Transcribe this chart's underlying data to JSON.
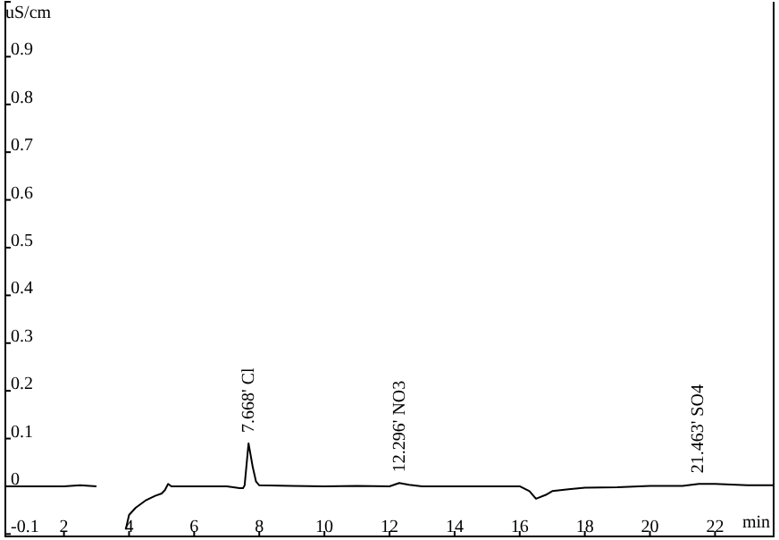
{
  "chart_data": {
    "type": "line",
    "ylabel": "uS/cm",
    "xlabel": "min",
    "x": [
      0.2,
      1,
      2,
      2.5,
      3,
      3.02,
      3.85,
      3.9,
      4,
      4.2,
      4.5,
      4.8,
      5,
      5.1,
      5.2,
      5.3,
      5.5,
      6,
      7,
      7.4,
      7.5,
      7.55,
      7.67,
      7.8,
      7.9,
      8,
      9,
      10,
      11,
      12,
      12.3,
      12.6,
      13,
      14,
      15,
      16,
      16.3,
      16.5,
      16.8,
      17,
      17.5,
      18,
      19,
      20,
      21,
      21.5,
      22,
      23,
      23.8
    ],
    "series": [
      {
        "color": "#000000",
        "values": [
          0,
          0,
          0,
          0.002,
          0,
          null,
          null,
          -0.09,
          -0.06,
          -0.045,
          -0.03,
          -0.02,
          -0.015,
          -0.008,
          0.005,
          0,
          0,
          0,
          0,
          -0.004,
          -0.004,
          0.002,
          0.09,
          0.04,
          0.01,
          0.002,
          0.001,
          0,
          0.001,
          0,
          0.007,
          0.003,
          0,
          0,
          0,
          0,
          -0.01,
          -0.026,
          -0.018,
          -0.01,
          -0.006,
          -0.003,
          -0.002,
          0.001,
          0.001,
          0.005,
          0.005,
          0.002,
          0.002
        ]
      }
    ],
    "xlim": [
      0.2,
      23.8
    ],
    "ylim": [
      -0.105,
      1.015
    ],
    "xticks": [
      2,
      4,
      6,
      8,
      10,
      12,
      14,
      16,
      18,
      20,
      22
    ],
    "yticks": [
      -0.1,
      0,
      0.1,
      0.2,
      0.3,
      0.4,
      0.5,
      0.6,
      0.7,
      0.8,
      0.9
    ],
    "grid": false,
    "marker": "none",
    "line_style": "solid",
    "annotations": [
      {
        "text": "7.668' Cl",
        "x": 7.668,
        "y": 0.09
      },
      {
        "text": "12.296' NO3",
        "x": 12.296,
        "y": 0.007
      },
      {
        "text": "21.463' SO4",
        "x": 21.463,
        "y": 0.005
      }
    ]
  }
}
